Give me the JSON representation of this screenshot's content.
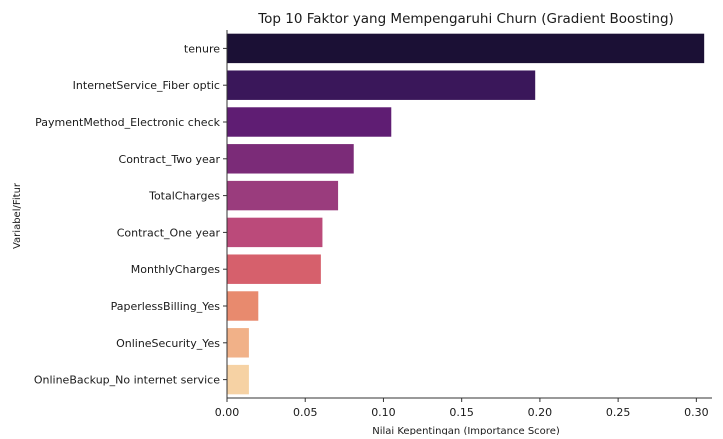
{
  "chart_data": {
    "type": "bar",
    "orientation": "horizontal",
    "title": "Top 10 Faktor yang Mempengaruhi Churn (Gradient Boosting)",
    "xlabel": "Nilai Kepentingan (Importance Score)",
    "ylabel": "Variabel/Fitur",
    "categories": [
      "tenure",
      "InternetService_Fiber optic",
      "PaymentMethod_Electronic check",
      "Contract_Two year",
      "TotalCharges",
      "Contract_One year",
      "MonthlyCharges",
      "PaperlessBilling_Yes",
      "OnlineSecurity_Yes",
      "OnlineBackup_No internet service"
    ],
    "values": [
      0.305,
      0.197,
      0.105,
      0.081,
      0.071,
      0.061,
      0.06,
      0.02,
      0.014,
      0.014
    ],
    "colors": [
      "#1b1035",
      "#3a175a",
      "#5f1d73",
      "#7b2b78",
      "#9a3c7d",
      "#bb4a7a",
      "#d6606c",
      "#e88a6e",
      "#f1b188",
      "#f6d2a4"
    ],
    "xlim": [
      0,
      0.31
    ],
    "xticks": [
      "0.00",
      "0.05",
      "0.10",
      "0.15",
      "0.20",
      "0.25",
      "0.30"
    ],
    "grid": false,
    "legend": "none"
  }
}
